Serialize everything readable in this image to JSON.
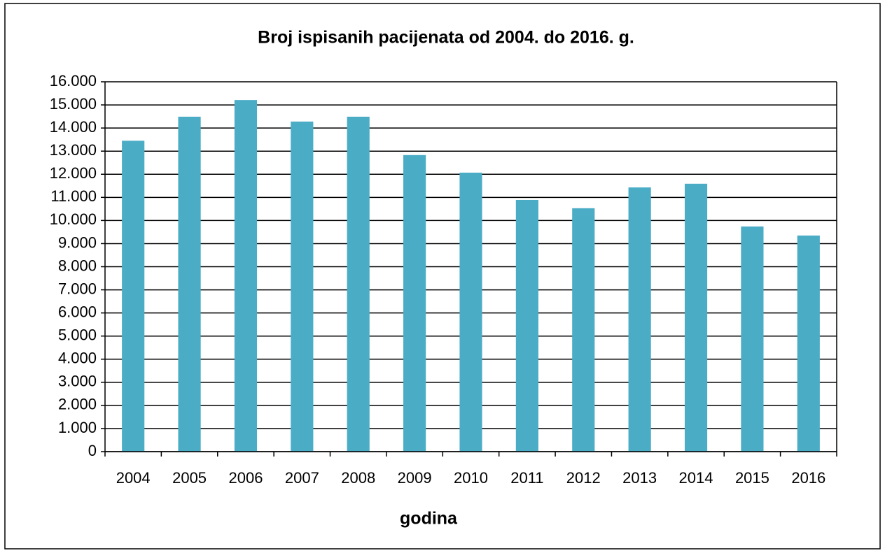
{
  "chart_data": {
    "type": "bar",
    "title": "Broj ispisanih pacijenata od 2004. do 2016. g.",
    "x_label": "godina",
    "categories": [
      "2004",
      "2005",
      "2006",
      "2007",
      "2008",
      "2009",
      "2010",
      "2011",
      "2012",
      "2013",
      "2014",
      "2015",
      "2016"
    ],
    "values": [
      13450,
      14490,
      15210,
      14280,
      14490,
      12830,
      12070,
      10890,
      10530,
      11430,
      11590,
      9740,
      9350
    ],
    "color": "#4bacc6",
    "ylim": [
      0,
      16000
    ],
    "yticks": [
      0,
      {
        "value": 1000,
        "label": "1.000"
      },
      {
        "value": 2000,
        "label": "2.000"
      },
      {
        "value": 3000,
        "label": "3.000"
      },
      {
        "value": 4000,
        "label": "4.000"
      },
      {
        "value": 5000,
        "label": "5.000"
      },
      {
        "value": 6000,
        "label": "6.000"
      },
      {
        "value": 7000,
        "label": "7.000"
      },
      {
        "value": 8000,
        "label": "8.000"
      },
      {
        "value": 9000,
        "label": "9.000"
      },
      {
        "value": 10000,
        "label": "10.000"
      },
      {
        "value": 11000,
        "label": "11.000"
      },
      {
        "value": 12000,
        "label": "12.000"
      },
      {
        "value": 13000,
        "label": "13.000"
      },
      {
        "value": 14000,
        "label": "14.000"
      },
      {
        "value": 15000,
        "label": "15.000"
      },
      {
        "value": 16000,
        "label": "16.000"
      }
    ],
    "grid": true
  }
}
